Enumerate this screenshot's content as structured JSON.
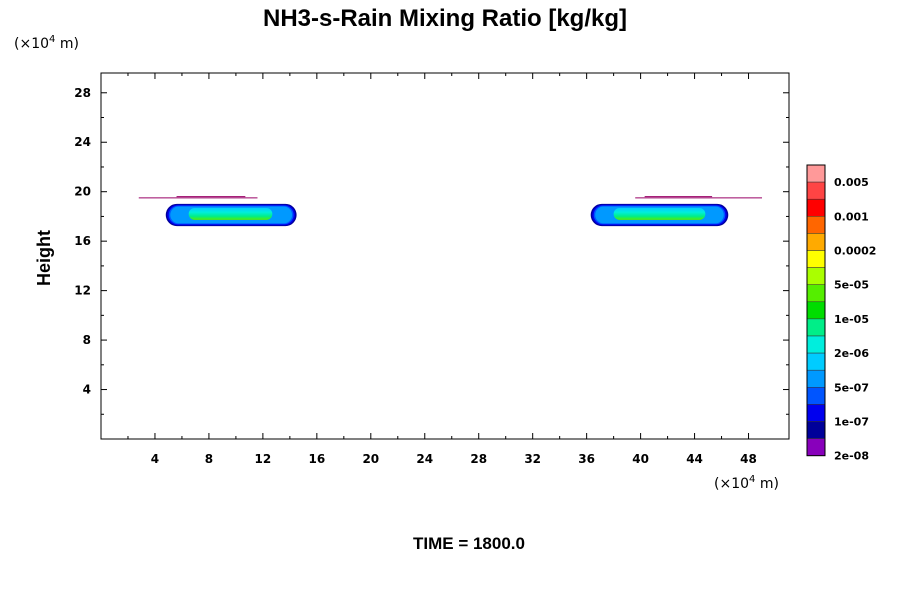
{
  "chart_data": {
    "type": "heatmap",
    "title": "NH3-s-Rain Mixing Ratio [kg/kg]",
    "ylabel": "Height",
    "x_unit": {
      "prefix": "(×10",
      "exp": "4",
      "suffix": " m)"
    },
    "y_unit": {
      "prefix": "(×10",
      "exp": "4",
      "suffix": " m)"
    },
    "xlim": [
      0,
      51
    ],
    "ylim": [
      0,
      29.6
    ],
    "x_ticks": [
      4,
      8,
      12,
      16,
      20,
      24,
      28,
      32,
      36,
      40,
      44,
      48
    ],
    "y_ticks": [
      4,
      8,
      12,
      16,
      20,
      24,
      28
    ],
    "footer": "TIME = 1800.0",
    "colorbar": {
      "colors": [
        "#ff9999",
        "#ff4444",
        "#ff0000",
        "#ff6600",
        "#ffaa00",
        "#ffff00",
        "#aaff00",
        "#55ee00",
        "#00dd00",
        "#00ee88",
        "#00eedd",
        "#00ccff",
        "#0099ff",
        "#0055ff",
        "#0000ee",
        "#000099",
        "#8800bb"
      ],
      "labels": [
        "0.005",
        "0.001",
        "0.0002",
        "5e-05",
        "1e-05",
        "2e-06",
        "5e-07",
        "1e-07",
        "2e-08"
      ]
    },
    "features": [
      {
        "name": "left cloud",
        "x_range": [
          4.8,
          14.5
        ],
        "y_range": [
          17.3,
          19.1
        ],
        "core_x_range": [
          6.5,
          12.7
        ],
        "core_y_range": [
          17.8,
          18.6
        ]
      },
      {
        "name": "right cloud",
        "x_range": [
          36.3,
          46.5
        ],
        "y_range": [
          17.3,
          19.1
        ],
        "core_x_range": [
          38,
          44.8
        ],
        "core_y_range": [
          17.8,
          18.6
        ]
      }
    ],
    "thin_lines": [
      {
        "x": [
          2.8,
          11.6
        ],
        "y": 19.5
      },
      {
        "x": [
          5.6,
          10.7
        ],
        "y": 19.6
      },
      {
        "x": [
          39.6,
          49
        ],
        "y": 19.5
      },
      {
        "x": [
          40.3,
          45.3
        ],
        "y": 19.6
      }
    ]
  }
}
